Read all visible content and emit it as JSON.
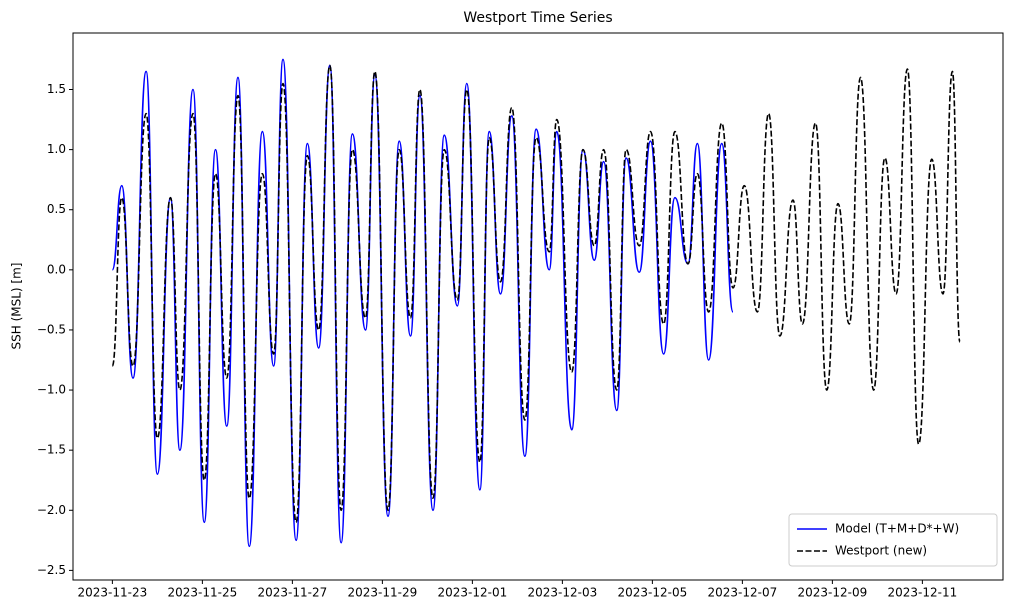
{
  "chart_data": {
    "type": "line",
    "title": "Westport Time Series",
    "y_label": "SSH (MSL) [m]",
    "x": [
      "2023-11-23T00:00",
      "2023-11-23T05:00",
      "2023-11-23T11:00",
      "2023-11-23T18:00",
      "2023-11-24T00:00",
      "2023-11-24T07:00",
      "2023-11-24T12:00",
      "2023-11-24T19:00",
      "2023-11-25T01:00",
      "2023-11-25T07:00",
      "2023-11-25T13:00",
      "2023-11-25T19:00",
      "2023-11-26T01:00",
      "2023-11-26T08:00",
      "2023-11-26T14:00",
      "2023-11-26T19:00",
      "2023-11-27T02:00",
      "2023-11-27T08:00",
      "2023-11-27T14:00",
      "2023-11-27T20:00",
      "2023-11-28T02:00",
      "2023-11-28T08:00",
      "2023-11-28T15:00",
      "2023-11-28T20:00",
      "2023-11-29T03:00",
      "2023-11-29T09:00",
      "2023-11-29T15:00",
      "2023-11-29T20:00",
      "2023-11-30T03:00",
      "2023-11-30T09:00",
      "2023-11-30T16:00",
      "2023-11-30T21:00",
      "2023-12-01T04:00",
      "2023-12-01T09:00",
      "2023-12-01T15:00",
      "2023-12-01T21:00",
      "2023-12-02T04:00",
      "2023-12-02T10:00",
      "2023-12-02T17:00",
      "2023-12-02T21:00",
      "2023-12-03T05:00",
      "2023-12-03T11:00",
      "2023-12-03T17:00",
      "2023-12-03T22:00",
      "2023-12-04T05:00",
      "2023-12-04T10:00",
      "2023-12-04T17:00",
      "2023-12-04T23:00",
      "2023-12-05T06:00",
      "2023-12-05T12:00",
      "2023-12-05T19:00",
      "2023-12-06T00:00",
      "2023-12-06T06:00",
      "2023-12-06T13:00",
      "2023-12-06T19:00",
      "2023-12-07T01:00",
      "2023-12-07T08:00",
      "2023-12-07T14:00",
      "2023-12-07T20:00",
      "2023-12-08T03:00",
      "2023-12-08T08:00",
      "2023-12-08T15:00",
      "2023-12-08T21:00",
      "2023-12-09T03:00",
      "2023-12-09T09:00",
      "2023-12-09T15:00",
      "2023-12-09T22:00",
      "2023-12-10T04:00",
      "2023-12-10T10:00",
      "2023-12-10T16:00",
      "2023-12-10T22:00",
      "2023-12-11T05:00",
      "2023-12-11T11:00",
      "2023-12-11T16:00",
      "2023-12-11T20:00"
    ],
    "series": [
      {
        "name": "Model (T+M+D*+W)",
        "color": "#0000ff",
        "dash": false,
        "values": [
          0.0,
          0.7,
          -0.9,
          1.65,
          -1.7,
          0.6,
          -1.5,
          1.5,
          -2.1,
          1.0,
          -1.3,
          1.6,
          -2.3,
          1.15,
          -0.8,
          1.75,
          -2.25,
          1.05,
          -0.65,
          1.7,
          -2.27,
          1.13,
          -0.5,
          1.62,
          -2.05,
          1.07,
          -0.55,
          1.45,
          -2.0,
          1.12,
          -0.3,
          1.55,
          -1.83,
          1.15,
          -0.2,
          1.28,
          -1.55,
          1.17,
          0.0,
          1.15,
          -1.33,
          1.0,
          0.08,
          0.9,
          -1.17,
          0.93,
          -0.02,
          1.07,
          -0.7,
          0.6,
          0.05,
          1.05,
          -0.75,
          1.05,
          -0.35,
          null,
          null,
          null,
          null,
          null,
          null,
          null,
          null,
          null,
          null,
          null,
          null,
          null,
          null,
          null,
          null,
          null,
          null,
          null,
          null
        ]
      },
      {
        "name": "Westport (new)",
        "color": "#000000",
        "dash": true,
        "values": [
          -0.8,
          0.6,
          -0.8,
          1.3,
          -1.4,
          0.6,
          -1.0,
          1.3,
          -1.75,
          0.8,
          -0.9,
          1.45,
          -1.9,
          0.8,
          -0.7,
          1.55,
          -2.1,
          0.95,
          -0.5,
          1.7,
          -2.0,
          1.0,
          -0.4,
          1.65,
          -2.0,
          1.0,
          -0.4,
          1.5,
          -1.9,
          1.0,
          -0.25,
          1.5,
          -1.6,
          1.1,
          -0.1,
          1.35,
          -1.25,
          1.1,
          0.15,
          1.25,
          -0.85,
          1.0,
          0.2,
          1.0,
          -1.0,
          1.0,
          0.2,
          1.15,
          -0.45,
          1.15,
          0.05,
          0.8,
          -0.35,
          1.22,
          -0.15,
          0.7,
          -0.35,
          1.3,
          -0.55,
          0.58,
          -0.45,
          1.22,
          -1.0,
          0.55,
          -0.45,
          1.6,
          -1.0,
          0.93,
          -0.2,
          1.67,
          -1.45,
          0.92,
          -0.2,
          1.65,
          -0.6
        ]
      }
    ],
    "xlim": [
      "2023-11-22T03:00",
      "2023-12-12T19:00"
    ],
    "xticks": [
      "2023-11-23",
      "2023-11-25",
      "2023-11-27",
      "2023-11-29",
      "2023-12-01",
      "2023-12-03",
      "2023-12-05",
      "2023-12-07",
      "2023-12-09",
      "2023-12-11"
    ],
    "ylim": [
      -2.58,
      1.97
    ],
    "yticks": [
      {
        "value": -2.5,
        "label": "−2.5"
      },
      {
        "value": -2,
        "label": "−2.0"
      },
      {
        "value": -1.5,
        "label": "−1.5"
      },
      {
        "value": -1,
        "label": "−1.0"
      },
      {
        "value": -0.5,
        "label": "−0.5"
      },
      {
        "value": 0,
        "label": "0.0"
      },
      0.5,
      {
        "value": 1,
        "label": "1.0"
      },
      1.5
    ],
    "grid": false,
    "legend": "lower right"
  }
}
